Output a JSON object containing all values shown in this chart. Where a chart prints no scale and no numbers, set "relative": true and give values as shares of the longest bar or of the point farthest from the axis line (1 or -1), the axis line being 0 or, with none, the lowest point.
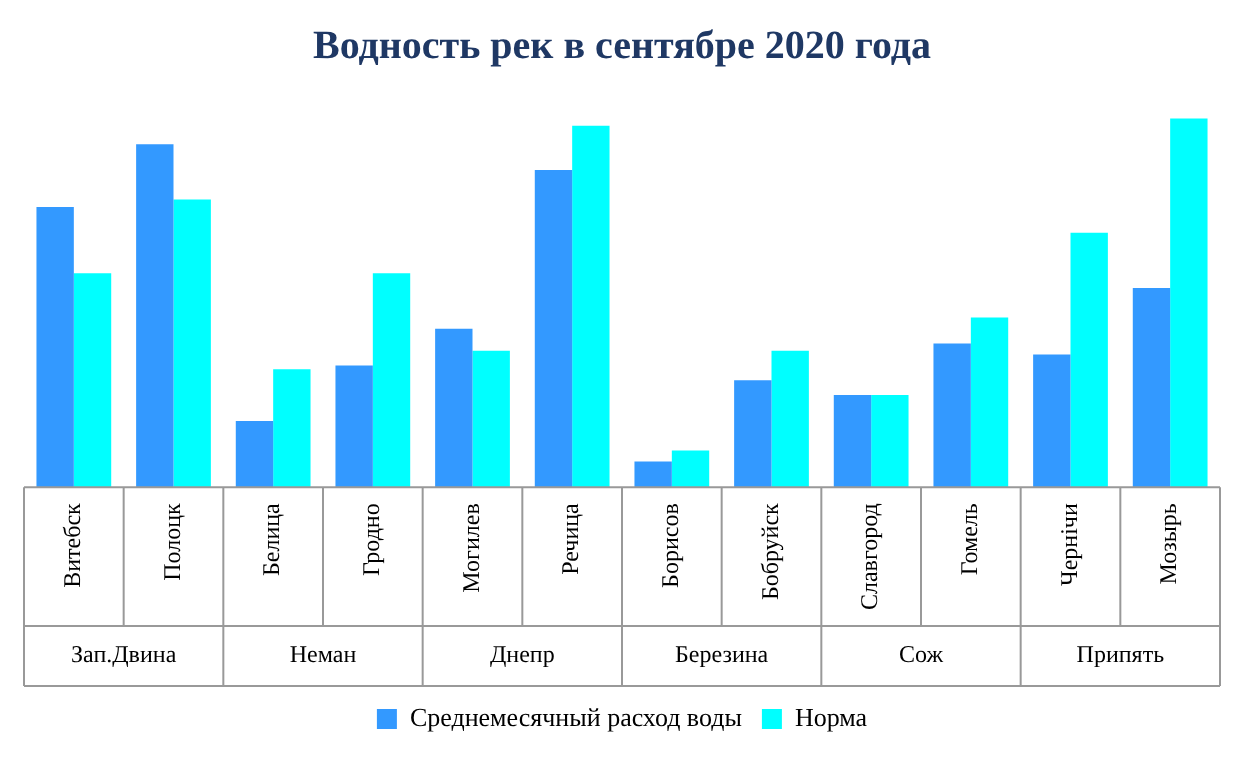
{
  "chart_data": {
    "type": "bar",
    "title": "Водность рек в сентябре 2020 года",
    "relative": true,
    "legend": "bottom",
    "grid": false,
    "categories": [
      "Витебск",
      "Полоцк",
      "Белица",
      "Гродно",
      "Могилев",
      "Речица",
      "Борисов",
      "Бобруйск",
      "Славгород",
      "Гомель",
      "Чернічи",
      "Мозырь"
    ],
    "series": [
      {
        "name": "Среднемесячный расход воды",
        "color": "#3399ff",
        "values": [
          0.76,
          0.93,
          0.18,
          0.33,
          0.43,
          0.86,
          0.07,
          0.29,
          0.25,
          0.39,
          0.36,
          0.54
        ]
      },
      {
        "name": "Норма",
        "color": "#00ffff",
        "values": [
          0.58,
          0.78,
          0.32,
          0.58,
          0.37,
          0.98,
          0.1,
          0.37,
          0.25,
          0.46,
          0.69,
          1
        ]
      }
    ],
    "annotations": [
      "Зап.Двина",
      "Неман",
      "Днепр",
      "Березина",
      "Сож",
      "Припять"
    ]
  }
}
